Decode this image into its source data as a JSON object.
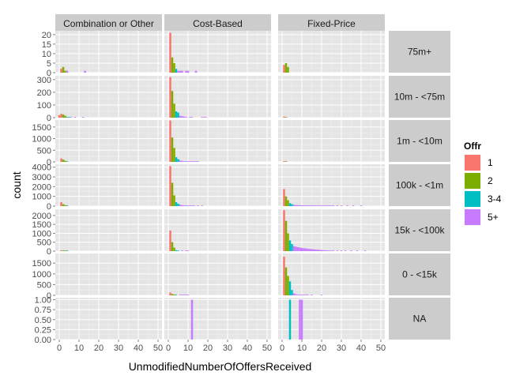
{
  "chart_data": {
    "type": "bar",
    "subtype": "faceted-histogram",
    "xlabel": "UnmodifiedNumberOfOffersReceived",
    "ylabel": "count",
    "xlim": [
      -2,
      52
    ],
    "xticks": [
      0,
      10,
      20,
      30,
      40,
      50
    ],
    "grid": true,
    "legend": {
      "title": "Offr",
      "placement": "right",
      "entries": [
        {
          "label": "1",
          "color": "#F8766D"
        },
        {
          "label": "2",
          "color": "#7CAE00"
        },
        {
          "label": "3-4",
          "color": "#00BFC4"
        },
        {
          "label": "5+",
          "color": "#C77CFF"
        }
      ]
    },
    "columns": [
      "Combination or Other",
      "Cost-Based",
      "Fixed-Price"
    ],
    "rows": [
      {
        "label": "75m+",
        "ylim": [
          0,
          22
        ],
        "yticks": [
          0,
          5,
          10,
          15,
          20
        ],
        "ytick_labels": [
          "0",
          "5",
          "10",
          "15",
          "20"
        ]
      },
      {
        "label": "10m - <75m",
        "ylim": [
          0,
          330
        ],
        "yticks": [
          0,
          100,
          200,
          300
        ],
        "ytick_labels": [
          "0",
          "100",
          "200",
          "300"
        ]
      },
      {
        "label": "1m - <10m",
        "ylim": [
          0,
          1800
        ],
        "yticks": [
          0,
          500,
          1000,
          1500
        ],
        "ytick_labels": [
          "0",
          "500",
          "1000",
          "1500"
        ]
      },
      {
        "label": "100k - <1m",
        "ylim": [
          0,
          4300
        ],
        "yticks": [
          0,
          1000,
          2000,
          3000,
          4000
        ],
        "ytick_labels": [
          "0",
          "1000",
          "2000",
          "3000",
          "4000"
        ]
      },
      {
        "label": "15k - <100k",
        "ylim": [
          0,
          2350
        ],
        "yticks": [
          0,
          500,
          1000,
          1500,
          2000
        ],
        "ytick_labels": [
          "0",
          "500",
          "1000",
          "1500",
          "2000"
        ]
      },
      {
        "label": "0 - <15k",
        "ylim": [
          0,
          1950
        ],
        "yticks": [
          0,
          500,
          1000,
          1500
        ],
        "ytick_labels": [
          "0",
          "500",
          "1000",
          "1500"
        ]
      },
      {
        "label": "NA",
        "ylim": [
          0,
          1.05
        ],
        "yticks": [
          0,
          0.25,
          0.5,
          0.75,
          1.0
        ],
        "ytick_labels": [
          "0.00",
          "0.25",
          "0.50",
          "0.75",
          "1.00"
        ]
      }
    ],
    "bars": [
      [
        [
          [
            1,
            "1",
            2
          ],
          [
            2,
            "2",
            3
          ],
          [
            3,
            "2",
            1
          ],
          [
            4,
            "5+",
            1
          ],
          [
            13,
            "5+",
            1
          ]
        ],
        [
          [
            0,
            "1",
            20
          ],
          [
            1,
            "1",
            30
          ],
          [
            2,
            "2",
            25
          ],
          [
            3,
            "2",
            15
          ],
          [
            4,
            "3-4",
            5
          ],
          [
            5,
            "3-4",
            3
          ],
          [
            6,
            "5+",
            2
          ],
          [
            8,
            "5+",
            2
          ],
          [
            12,
            "5+",
            1
          ]
        ],
        [
          [
            1,
            "1",
            150
          ],
          [
            2,
            "2",
            100
          ],
          [
            3,
            "2",
            50
          ],
          [
            4,
            "3-4",
            20
          ]
        ],
        [
          [
            1,
            "1",
            400
          ],
          [
            2,
            "2",
            200
          ],
          [
            3,
            "2",
            100
          ],
          [
            4,
            "3-4",
            40
          ]
        ],
        [
          [
            1,
            "1",
            40
          ],
          [
            2,
            "2",
            30
          ],
          [
            3,
            "2",
            15
          ],
          [
            4,
            "3-4",
            5
          ]
        ],
        [],
        []
      ],
      [
        [
          [
            1,
            "1",
            21
          ],
          [
            2,
            "2",
            8
          ],
          [
            3,
            "2",
            5
          ],
          [
            4,
            "3-4",
            2
          ],
          [
            5,
            "5+",
            1
          ],
          [
            6,
            "5+",
            1
          ],
          [
            7,
            "5+",
            1
          ],
          [
            9,
            "5+",
            1
          ],
          [
            10,
            "5+",
            1
          ],
          [
            14,
            "5+",
            1
          ]
        ],
        [
          [
            1,
            "1",
            320
          ],
          [
            2,
            "2",
            210
          ],
          [
            3,
            "2",
            110
          ],
          [
            4,
            "3-4",
            50
          ],
          [
            5,
            "3-4",
            40
          ],
          [
            6,
            "5+",
            15
          ],
          [
            7,
            "5+",
            12
          ],
          [
            8,
            "5+",
            8
          ],
          [
            9,
            "5+",
            6
          ],
          [
            11,
            "5+",
            5
          ],
          [
            12,
            "5+",
            4
          ],
          [
            17,
            "5+",
            3
          ],
          [
            18,
            "5+",
            3
          ],
          [
            19,
            "5+",
            3
          ]
        ],
        [
          [
            1,
            "1",
            1780
          ],
          [
            2,
            "2",
            1050
          ],
          [
            3,
            "2",
            600
          ],
          [
            4,
            "3-4",
            200
          ],
          [
            5,
            "3-4",
            120
          ],
          [
            6,
            "5+",
            60
          ],
          [
            7,
            "5+",
            40
          ],
          [
            8,
            "5+",
            30
          ],
          [
            9,
            "5+",
            20
          ],
          [
            10,
            "5+",
            15
          ],
          [
            11,
            "5+",
            10
          ],
          [
            12,
            "5+",
            10
          ],
          [
            13,
            "5+",
            8
          ],
          [
            14,
            "5+",
            6
          ],
          [
            15,
            "5+",
            5
          ]
        ],
        [
          [
            1,
            "1",
            4100
          ],
          [
            2,
            "2",
            2400
          ],
          [
            3,
            "2",
            1100
          ],
          [
            4,
            "3-4",
            400
          ],
          [
            5,
            "3-4",
            250
          ],
          [
            6,
            "5+",
            150
          ],
          [
            7,
            "5+",
            100
          ],
          [
            8,
            "5+",
            80
          ],
          [
            9,
            "5+",
            60
          ],
          [
            10,
            "5+",
            50
          ],
          [
            11,
            "5+",
            40
          ],
          [
            12,
            "5+",
            40
          ],
          [
            13,
            "5+",
            30
          ],
          [
            15,
            "5+",
            20
          ],
          [
            17,
            "5+",
            15
          ]
        ],
        [
          [
            1,
            "1",
            1150
          ],
          [
            2,
            "2",
            500
          ],
          [
            3,
            "2",
            200
          ],
          [
            4,
            "3-4",
            50
          ],
          [
            5,
            "3-4",
            30
          ],
          [
            7,
            "5+",
            20
          ],
          [
            9,
            "5+",
            15
          ],
          [
            10,
            "5+",
            10
          ]
        ],
        [
          [
            1,
            "1",
            130
          ],
          [
            2,
            "2",
            60
          ],
          [
            3,
            "2",
            40
          ],
          [
            4,
            "3-4",
            20
          ],
          [
            6,
            "5+",
            10
          ],
          [
            7,
            "5+",
            8
          ],
          [
            8,
            "5+",
            6
          ],
          [
            9,
            "5+",
            5
          ],
          [
            10,
            "5+",
            5
          ]
        ],
        [
          [
            12,
            "5+",
            1
          ]
        ]
      ],
      [
        [
          [
            1,
            "1",
            4
          ],
          [
            2,
            "2",
            5
          ],
          [
            3,
            "2",
            3
          ]
        ],
        [
          [
            1,
            "1",
            8
          ],
          [
            2,
            "2",
            4
          ]
        ],
        [
          [
            1,
            "1",
            30
          ],
          [
            2,
            "2",
            15
          ]
        ],
        [
          [
            1,
            "1",
            1750
          ],
          [
            2,
            "2",
            1000
          ],
          [
            3,
            "2",
            600
          ],
          [
            4,
            "3-4",
            300
          ],
          [
            5,
            "3-4",
            200
          ],
          [
            6,
            "5+",
            130
          ],
          [
            7,
            "5+",
            110
          ],
          [
            8,
            "5+",
            100
          ],
          [
            9,
            "5+",
            90
          ],
          [
            10,
            "5+",
            85
          ],
          [
            11,
            "5+",
            80
          ],
          [
            12,
            "5+",
            75
          ],
          [
            13,
            "5+",
            75
          ],
          [
            14,
            "5+",
            70
          ],
          [
            15,
            "5+",
            70
          ],
          [
            16,
            "5+",
            65
          ],
          [
            17,
            "5+",
            65
          ],
          [
            18,
            "5+",
            60
          ],
          [
            19,
            "5+",
            55
          ],
          [
            20,
            "5+",
            50
          ],
          [
            21,
            "5+",
            50
          ],
          [
            22,
            "5+",
            45
          ],
          [
            23,
            "5+",
            40
          ],
          [
            24,
            "5+",
            35
          ],
          [
            25,
            "5+",
            30
          ],
          [
            26,
            "5+",
            25
          ],
          [
            28,
            "5+",
            20
          ],
          [
            30,
            "5+",
            15
          ],
          [
            33,
            "5+",
            10
          ],
          [
            36,
            "5+",
            8
          ],
          [
            40,
            "5+",
            5
          ]
        ],
        [
          [
            1,
            "1",
            2300
          ],
          [
            2,
            "2",
            1700
          ],
          [
            3,
            "2",
            1000
          ],
          [
            4,
            "3-4",
            600
          ],
          [
            5,
            "3-4",
            400
          ],
          [
            6,
            "5+",
            280
          ],
          [
            7,
            "5+",
            250
          ],
          [
            8,
            "5+",
            220
          ],
          [
            9,
            "5+",
            200
          ],
          [
            10,
            "5+",
            180
          ],
          [
            11,
            "5+",
            160
          ],
          [
            12,
            "5+",
            150
          ],
          [
            13,
            "5+",
            130
          ],
          [
            14,
            "5+",
            120
          ],
          [
            15,
            "5+",
            110
          ],
          [
            16,
            "5+",
            100
          ],
          [
            17,
            "5+",
            90
          ],
          [
            18,
            "5+",
            80
          ],
          [
            19,
            "5+",
            70
          ],
          [
            20,
            "5+",
            60
          ],
          [
            21,
            "5+",
            50
          ],
          [
            22,
            "5+",
            45
          ],
          [
            23,
            "5+",
            40
          ],
          [
            24,
            "5+",
            30
          ],
          [
            25,
            "5+",
            25
          ],
          [
            26,
            "5+",
            20
          ],
          [
            28,
            "5+",
            15
          ],
          [
            30,
            "5+",
            12
          ],
          [
            32,
            "5+",
            10
          ],
          [
            35,
            "5+",
            8
          ],
          [
            38,
            "5+",
            6
          ],
          [
            42,
            "5+",
            5
          ]
        ],
        [
          [
            1,
            "1",
            1800
          ],
          [
            2,
            "2",
            1300
          ],
          [
            3,
            "2",
            900
          ],
          [
            4,
            "3-4",
            650
          ],
          [
            5,
            "3-4",
            250
          ],
          [
            6,
            "5+",
            90
          ],
          [
            7,
            "5+",
            50
          ],
          [
            8,
            "5+",
            30
          ],
          [
            9,
            "5+",
            25
          ],
          [
            10,
            "5+",
            20
          ],
          [
            11,
            "5+",
            15
          ],
          [
            12,
            "5+",
            10
          ],
          [
            13,
            "5+",
            10
          ],
          [
            15,
            "5+",
            8
          ],
          [
            20,
            "5+",
            5
          ]
        ],
        [
          [
            4,
            "3-4",
            1
          ],
          [
            9,
            "5+",
            1
          ],
          [
            10,
            "5+",
            1
          ]
        ]
      ]
    ]
  }
}
